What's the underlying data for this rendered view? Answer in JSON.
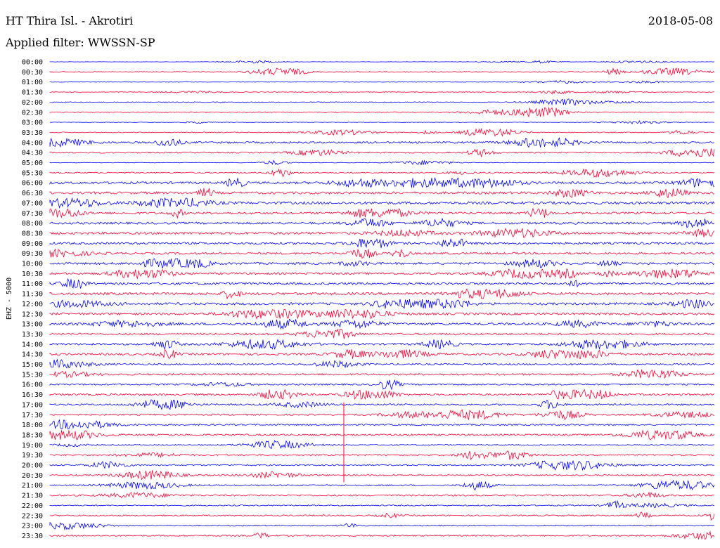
{
  "header": {
    "station": "HT Thira Isl. - Akrotiri",
    "date": "2018-05-08",
    "filter": "Applied filter: WWSSN-SP"
  },
  "chart_data": {
    "type": "line",
    "ylabel": "EHZ - 5000",
    "row_labels": [
      "00:00",
      "00:30",
      "01:00",
      "01:30",
      "02:00",
      "02:30",
      "03:00",
      "03:30",
      "04:00",
      "04:30",
      "05:00",
      "05:30",
      "06:00",
      "06:30",
      "07:00",
      "07:30",
      "08:00",
      "08:30",
      "09:00",
      "09:30",
      "10:00",
      "10:30",
      "11:00",
      "11:30",
      "12:00",
      "12:30",
      "13:00",
      "13:30",
      "14:00",
      "14:30",
      "15:00",
      "15:30",
      "16:00",
      "16:30",
      "17:00",
      "17:30",
      "18:00",
      "18:30",
      "19:00",
      "19:30",
      "20:00",
      "20:30",
      "21:00",
      "21:30",
      "22:00",
      "22:30",
      "23:00",
      "23:30"
    ],
    "colors": [
      "#0000ff",
      "#ff0033"
    ],
    "noise_levels": [
      0.4,
      1.2,
      0.5,
      0.8,
      0.9,
      1.0,
      0.5,
      1.0,
      2.2,
      1.6,
      0.7,
      1.4,
      2.6,
      2.8,
      3.0,
      2.4,
      2.6,
      2.8,
      2.6,
      2.4,
      2.6,
      2.4,
      2.6,
      3.0,
      2.8,
      2.6,
      2.6,
      2.2,
      2.4,
      2.4,
      2.0,
      2.2,
      1.8,
      2.2,
      2.0,
      1.8,
      1.8,
      2.0,
      1.4,
      1.6,
      1.6,
      1.6,
      1.6,
      1.8,
      1.4,
      1.6,
      1.4,
      1.6
    ]
  }
}
